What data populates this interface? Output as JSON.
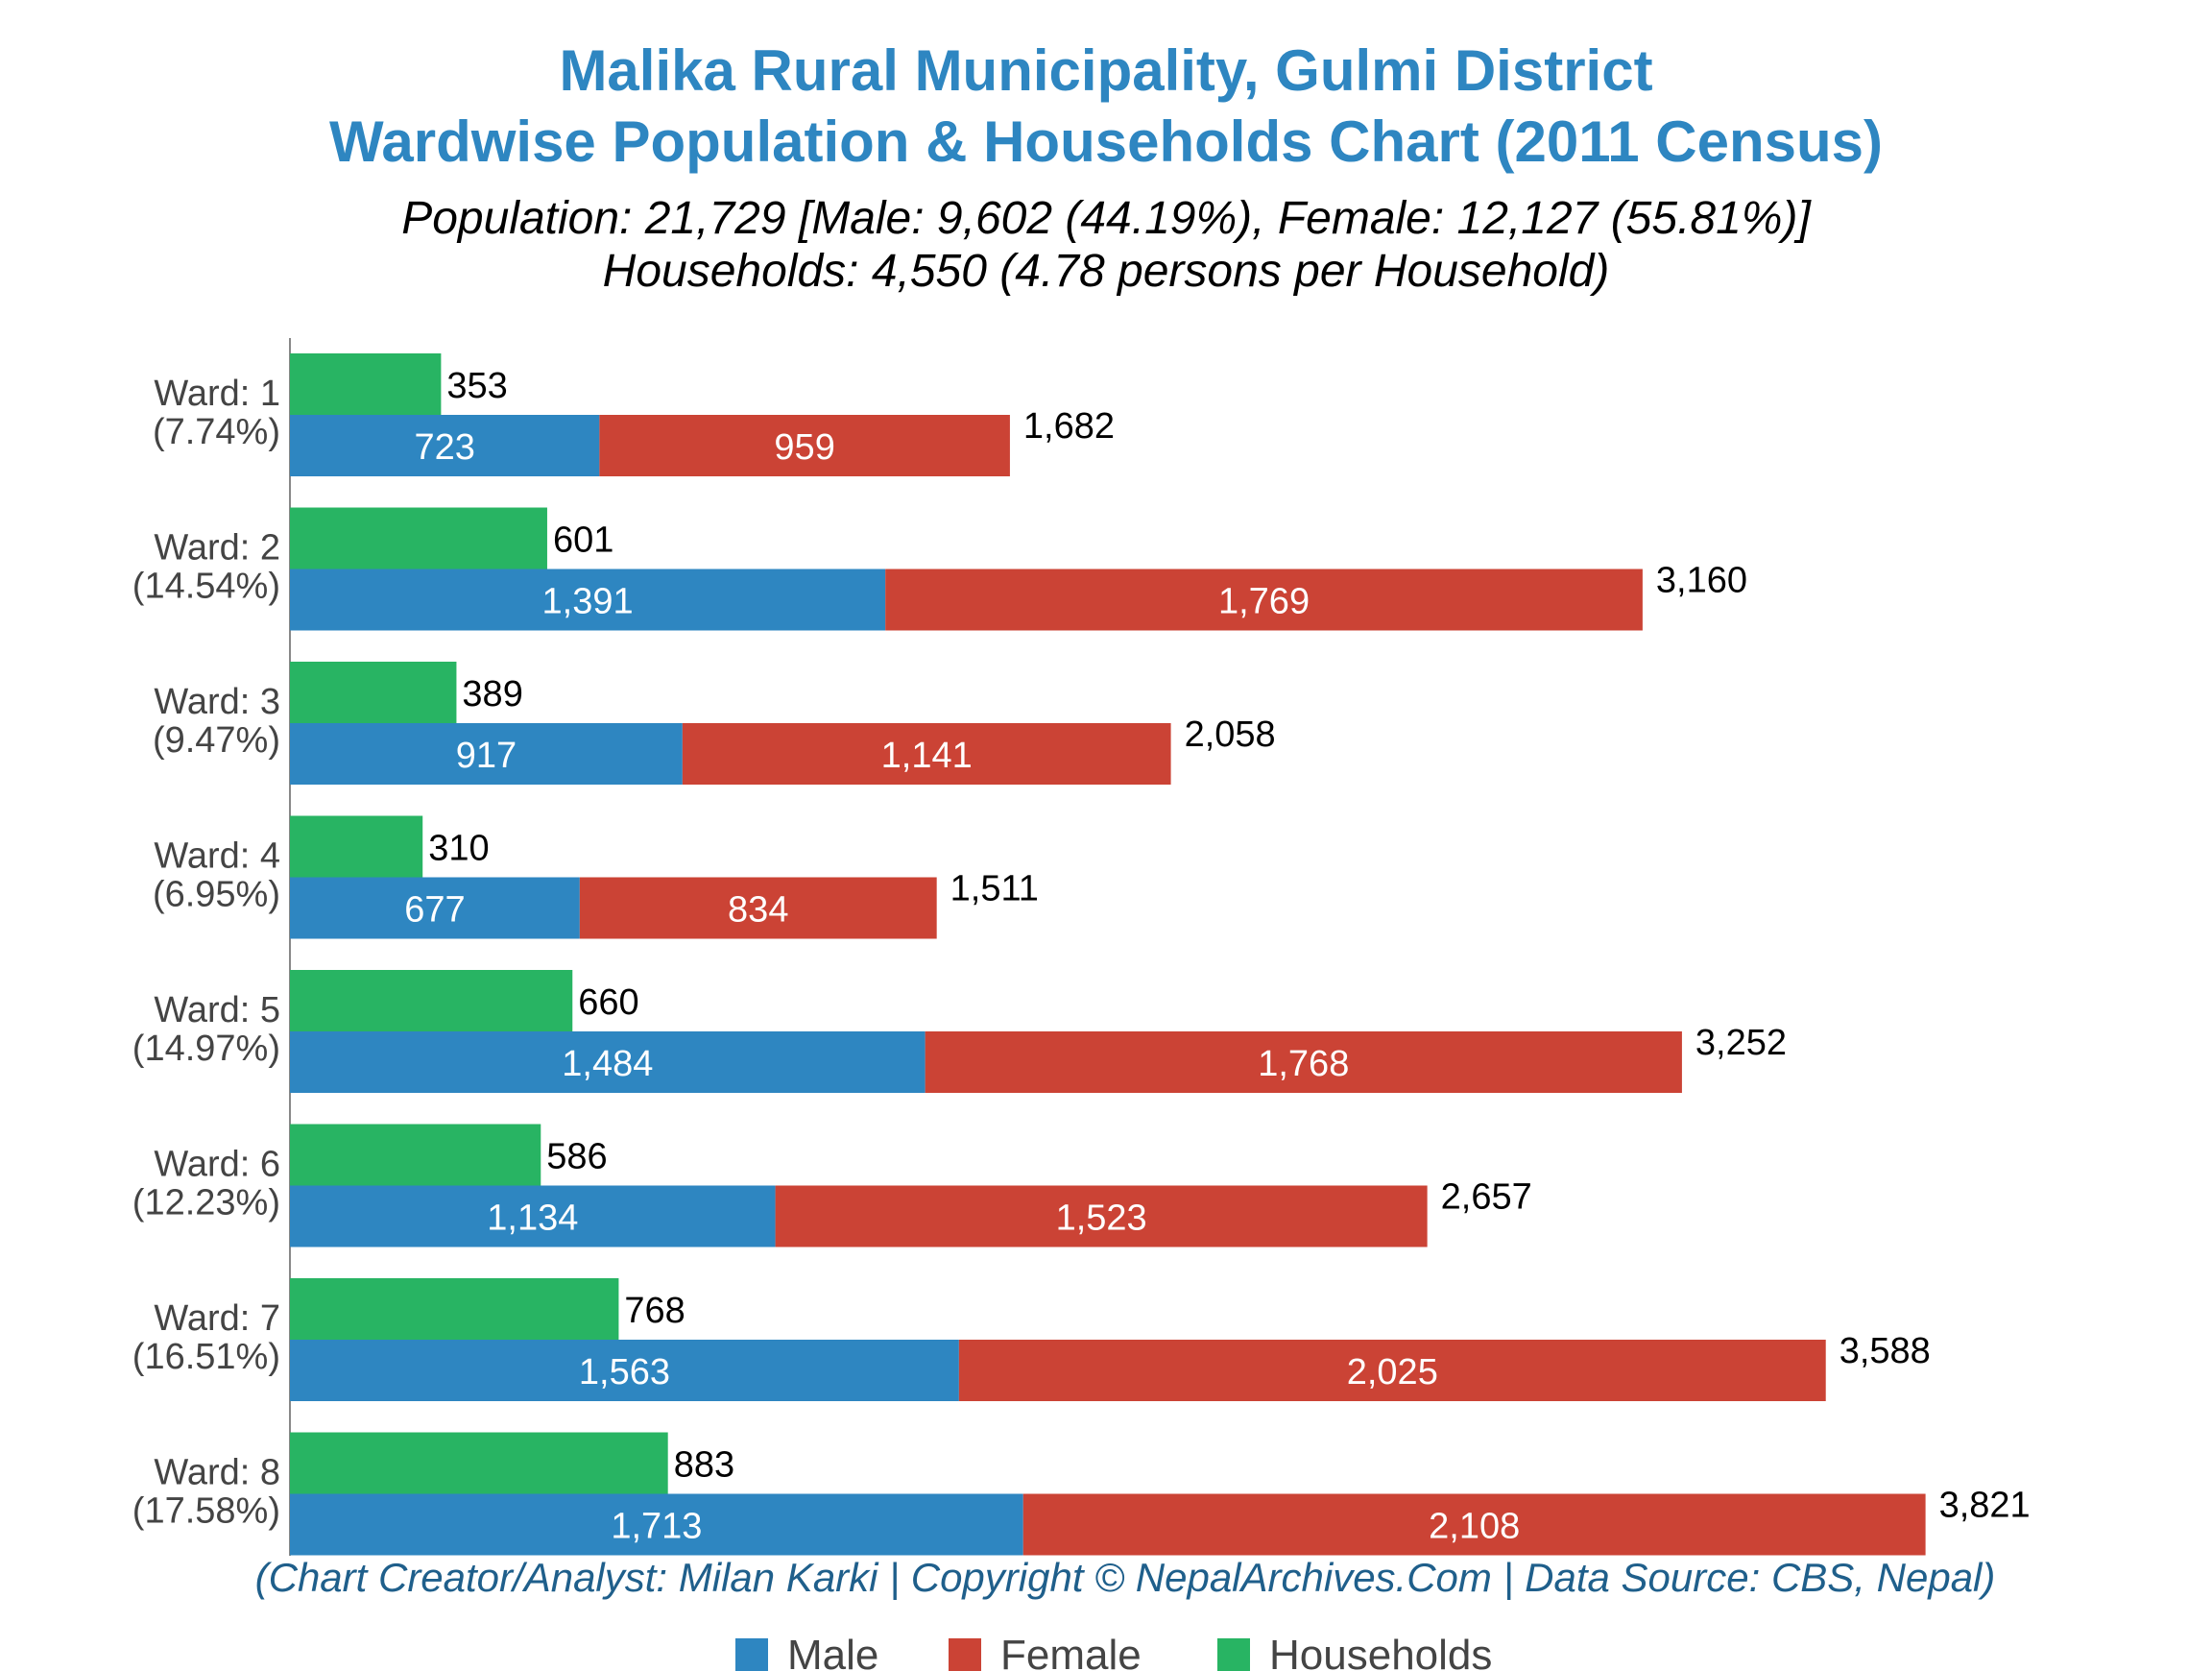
{
  "chart_data": {
    "type": "bar",
    "orientation": "horizontal",
    "title": [
      "Malika Rural Municipality, Gulmi District",
      "Wardwise Population & Households Chart (2011 Census)"
    ],
    "subtitle": [
      "Population: 21,729 [Male: 9,602 (44.19%), Female: 12,127 (55.81%)]",
      "Households: 4,550 (4.78 persons per Household)"
    ],
    "categories": [
      {
        "ward": "Ward: 1",
        "share": "(7.74%)"
      },
      {
        "ward": "Ward: 2",
        "share": "(14.54%)"
      },
      {
        "ward": "Ward: 3",
        "share": "(9.47%)"
      },
      {
        "ward": "Ward: 4",
        "share": "(6.95%)"
      },
      {
        "ward": "Ward: 5",
        "share": "(14.97%)"
      },
      {
        "ward": "Ward: 6",
        "share": "(12.23%)"
      },
      {
        "ward": "Ward: 7",
        "share": "(16.51%)"
      },
      {
        "ward": "Ward: 8",
        "share": "(17.58%)"
      }
    ],
    "series": [
      {
        "name": "Male",
        "color": "#2e86c1",
        "values": [
          723,
          1391,
          917,
          677,
          1484,
          1134,
          1563,
          1713
        ],
        "labels": [
          "723",
          "1,391",
          "917",
          "677",
          "1,484",
          "1,134",
          "1,563",
          "1,713"
        ]
      },
      {
        "name": "Female",
        "color": "#cb4335",
        "values": [
          959,
          1769,
          1141,
          834,
          1768,
          1523,
          2025,
          2108
        ],
        "labels": [
          "959",
          "1,769",
          "1,141",
          "834",
          "1,768",
          "1,523",
          "2,025",
          "2,108"
        ]
      },
      {
        "name": "Households",
        "color": "#28b463",
        "values": [
          353,
          601,
          389,
          310,
          660,
          586,
          768,
          883
        ],
        "labels": [
          "353",
          "601",
          "389",
          "310",
          "660",
          "586",
          "768",
          "883"
        ]
      }
    ],
    "totals": {
      "values": [
        1682,
        3160,
        2058,
        1511,
        3252,
        2657,
        3588,
        3821
      ],
      "labels": [
        "1,682",
        "3,160",
        "2,058",
        "1,511",
        "3,252",
        "2,657",
        "3,588",
        "3,821"
      ]
    },
    "stacked": [
      "Male",
      "Female"
    ],
    "xlim": [
      0,
      4100
    ],
    "grid": false,
    "legend": "bottom-center",
    "credit": "(Chart Creator/Analyst: Milan Karki | Copyright © NepalArchives.Com | Data Source: CBS, Nepal)"
  }
}
